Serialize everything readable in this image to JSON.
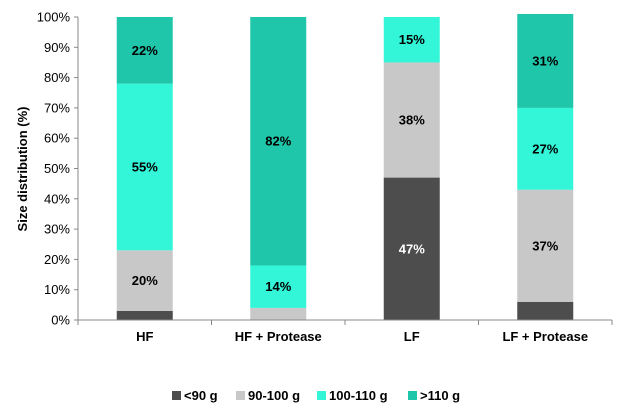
{
  "chart_data": {
    "type": "bar",
    "stacked": true,
    "categories": [
      "HF",
      "HF + Protease",
      "LF",
      "LF + Protease"
    ],
    "series": [
      {
        "name": "<90 g",
        "color": "#4d4d4d",
        "values": [
          3,
          0,
          47,
          6
        ]
      },
      {
        "name": "90-100 g",
        "color": "#c8c8c8",
        "values": [
          20,
          4,
          38,
          37
        ]
      },
      {
        "name": "100-110 g",
        "color": "#33f5d8",
        "values": [
          55,
          14,
          15,
          27
        ]
      },
      {
        "name": ">110 g",
        "color": "#1fc6aa",
        "values": [
          22,
          82,
          0,
          31
        ]
      }
    ],
    "data_labels": [
      {
        "category": "HF",
        "series": "90-100 g",
        "text": "20%"
      },
      {
        "category": "HF",
        "series": "100-110 g",
        "text": "55%"
      },
      {
        "category": "HF",
        "series": ">110 g",
        "text": "22%"
      },
      {
        "category": "HF + Protease",
        "series": "100-110 g",
        "text": "14%"
      },
      {
        "category": "HF + Protease",
        "series": ">110 g",
        "text": "82%"
      },
      {
        "category": "LF",
        "series": "<90 g",
        "text": "47%"
      },
      {
        "category": "LF",
        "series": "90-100 g",
        "text": "38%"
      },
      {
        "category": "LF",
        "series": "100-110 g",
        "text": "15%"
      },
      {
        "category": "LF + Protease",
        "series": "90-100 g",
        "text": "37%"
      },
      {
        "category": "LF + Protease",
        "series": "100-110 g",
        "text": "27%"
      },
      {
        "category": "LF + Protease",
        "series": ">110 g",
        "text": "31%"
      }
    ],
    "ylabel": "Size distribution (%)",
    "xlabel": "",
    "title": "",
    "ylim": [
      0,
      100
    ],
    "yticks": [
      "0%",
      "10%",
      "20%",
      "30%",
      "40%",
      "50%",
      "60%",
      "70%",
      "80%",
      "90%",
      "100%"
    ],
    "grid": false,
    "legend_position": "bottom"
  }
}
